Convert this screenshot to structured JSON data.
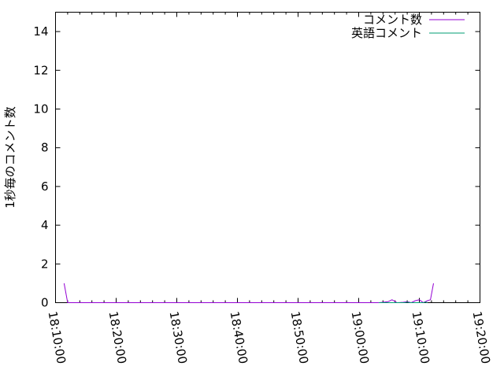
{
  "chart_data": {
    "type": "line",
    "title": "",
    "xlabel": "",
    "ylabel": "1秒毎のコメント数",
    "xlim": [
      "18:10:00",
      "19:20:00"
    ],
    "ylim": [
      0,
      15
    ],
    "xticks": [
      "18:10:00",
      "18:20:00",
      "18:30:00",
      "18:40:00",
      "18:50:00",
      "19:00:00",
      "19:10:00",
      "19:20:00"
    ],
    "yticks": [
      0,
      2,
      4,
      6,
      8,
      10,
      12,
      14
    ],
    "grid": false,
    "legend_position": "top-right",
    "series": [
      {
        "name": "コメント数",
        "color": "#9400d3",
        "points": [
          [
            "18:11:25",
            1
          ],
          [
            "18:12:00",
            0
          ],
          [
            "19:03:20",
            0
          ],
          [
            "19:04:50",
            0.05
          ],
          [
            "19:05:30",
            0.15
          ],
          [
            "19:06:20",
            0
          ],
          [
            "19:07:20",
            0.02
          ],
          [
            "19:08:00",
            0.05
          ],
          [
            "19:08:40",
            0
          ],
          [
            "19:09:20",
            0.1
          ],
          [
            "19:10:00",
            0.15
          ],
          [
            "19:10:40",
            0
          ],
          [
            "19:11:20",
            0.1
          ],
          [
            "19:11:50",
            0.15
          ],
          [
            "19:12:20",
            1
          ]
        ]
      },
      {
        "name": "英語コメント",
        "color": "#009e73",
        "points": [
          [
            "19:03:20",
            0
          ],
          [
            "19:07:40",
            0
          ],
          [
            "19:08:00",
            0.03
          ],
          [
            "19:08:20",
            0
          ],
          [
            "19:10:40",
            0
          ],
          [
            "19:11:00",
            0.03
          ],
          [
            "19:11:20",
            0
          ]
        ]
      }
    ]
  }
}
